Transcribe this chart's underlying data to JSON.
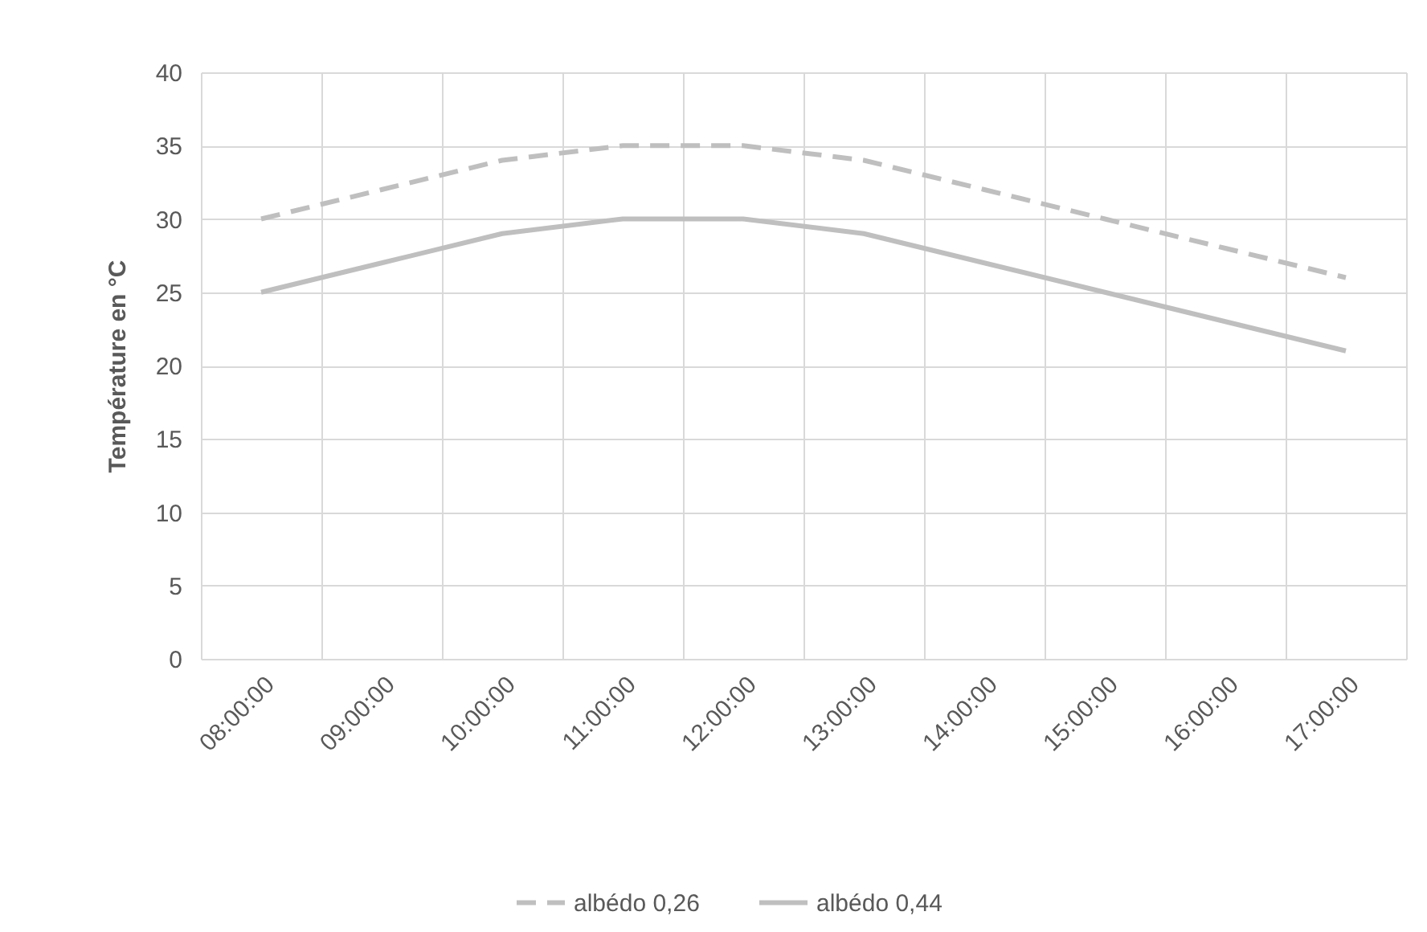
{
  "chart_data": {
    "type": "line",
    "ylabel": "Température en °C",
    "categories": [
      "08:00:00",
      "09:00:00",
      "10:00:00",
      "11:00:00",
      "12:00:00",
      "13:00:00",
      "14:00:00",
      "15:00:00",
      "16:00:00",
      "17:00:00"
    ],
    "series": [
      {
        "name": "albédo 0,26",
        "color": "#bfbfbf",
        "line_style": "dashed",
        "values": [
          30,
          32,
          34,
          35,
          35,
          34,
          32,
          30,
          28,
          26
        ]
      },
      {
        "name": "albédo 0,44",
        "color": "#bfbfbf",
        "line_style": "solid",
        "values": [
          25,
          27,
          29,
          30,
          30,
          29,
          27,
          25,
          23,
          21
        ]
      }
    ],
    "ylim": [
      0,
      40
    ],
    "yticks": [
      0,
      5,
      10,
      15,
      20,
      25,
      30,
      35,
      40
    ],
    "grid": true,
    "legend": "bottom"
  }
}
